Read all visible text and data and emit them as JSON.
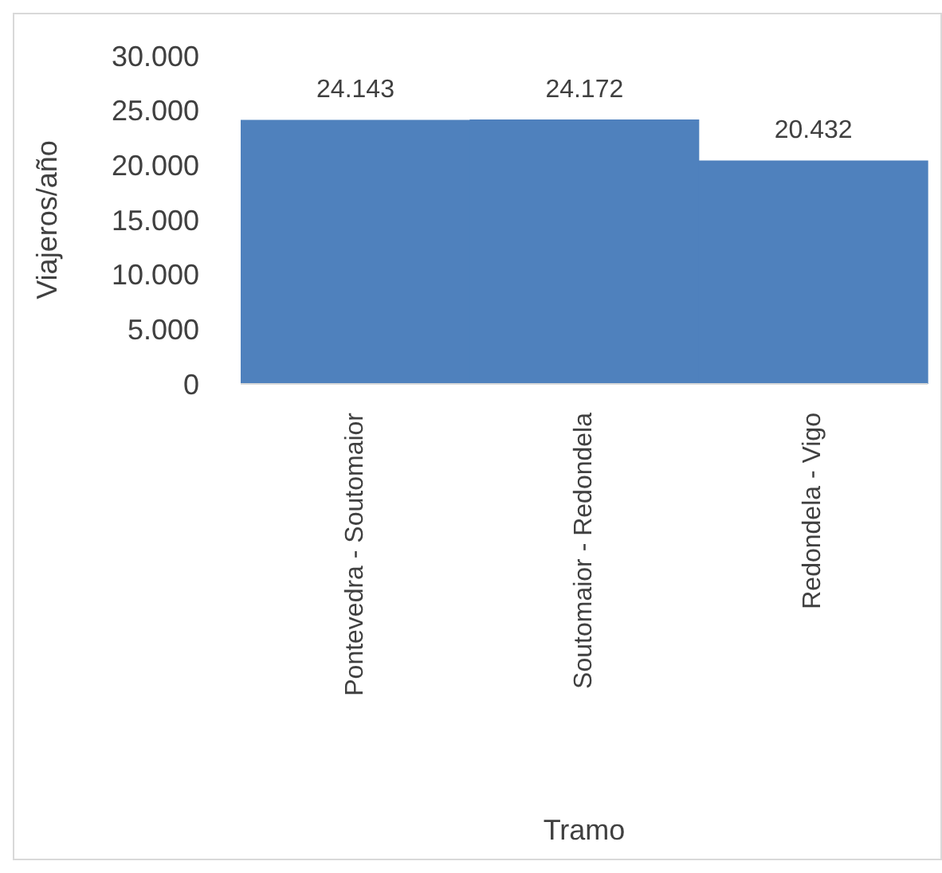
{
  "chart_data": {
    "type": "bar",
    "xlabel": "Tramo",
    "ylabel": "Viajeros/año",
    "categories": [
      "Pontevedra - Soutomaior",
      "Soutomaior - Redondela",
      "Redondela - Vigo"
    ],
    "values": [
      24143,
      24172,
      20432
    ],
    "color": "#4f81bd",
    "value_labels": [
      "24.143",
      "24.172",
      "20.432"
    ],
    "ylim": [
      0,
      30000
    ],
    "yticks": [
      {
        "value": 0,
        "label": "0"
      },
      {
        "value": 5000,
        "label": "5.000"
      },
      {
        "value": 10000,
        "label": "10.000"
      },
      {
        "value": 15000,
        "label": "15.000"
      },
      {
        "value": 20000,
        "label": "20.000"
      },
      {
        "value": 25000,
        "label": "25.000"
      },
      {
        "value": 30000,
        "label": "30.000"
      }
    ],
    "grid": false,
    "legend": false
  }
}
